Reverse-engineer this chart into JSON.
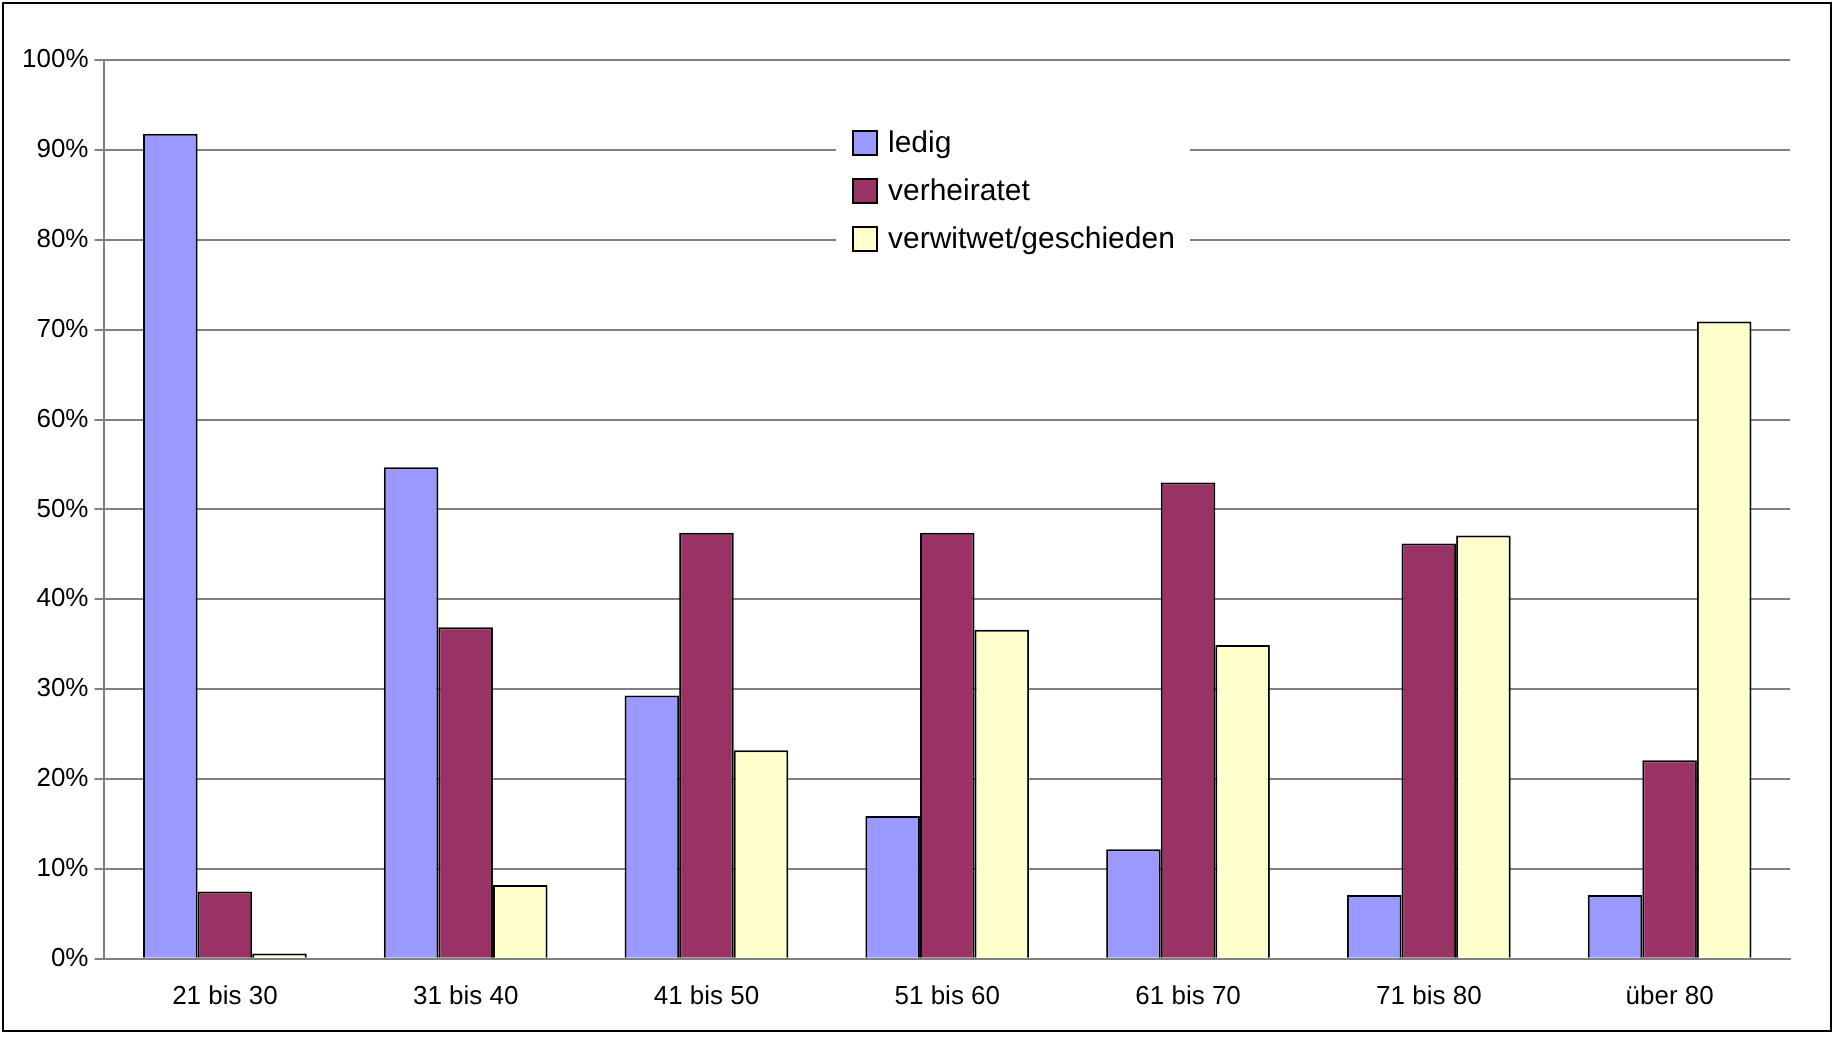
{
  "chart_data": {
    "type": "bar",
    "categories": [
      "21 bis 30",
      "31 bis 40",
      "41 bis 50",
      "51 bis 60",
      "61 bis 70",
      "71 bis 80",
      "über 80"
    ],
    "series": [
      {
        "name": "ledig",
        "color": "#9999ff",
        "values": [
          91.8,
          54.7,
          29.3,
          15.9,
          12.2,
          7.1,
          7.1
        ]
      },
      {
        "name": "verheiratet",
        "color": "#993366",
        "values": [
          7.5,
          36.9,
          47.4,
          47.4,
          53.0,
          46.2,
          22.1
        ]
      },
      {
        "name": "verwitwet/geschieden",
        "color": "#ffffcc",
        "values": [
          0.6,
          8.2,
          23.2,
          36.6,
          34.9,
          47.1,
          70.9
        ]
      }
    ],
    "ylim": [
      0,
      100
    ],
    "yticks": [
      {
        "value": 0,
        "label": "0%"
      },
      {
        "value": 10,
        "label": "10%"
      },
      {
        "value": 20,
        "label": "20%"
      },
      {
        "value": 30,
        "label": "30%"
      },
      {
        "value": 40,
        "label": "40%"
      },
      {
        "value": 50,
        "label": "50%"
      },
      {
        "value": 60,
        "label": "60%"
      },
      {
        "value": 70,
        "label": "70%"
      },
      {
        "value": 80,
        "label": "80%"
      },
      {
        "value": 90,
        "label": "90%"
      },
      {
        "value": 100,
        "label": "100%"
      }
    ],
    "grid": "y",
    "legend": "top"
  }
}
